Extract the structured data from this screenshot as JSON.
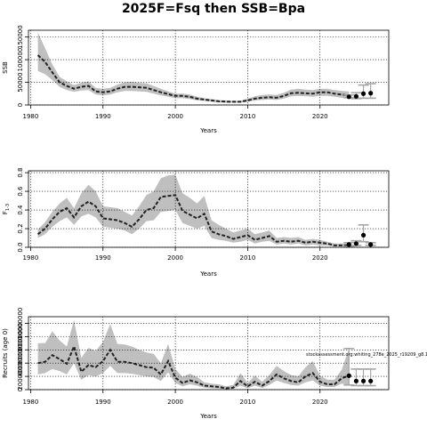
{
  "title": "2025F=Fsq then SSB=Bpa",
  "annotation": "stockassessment.org:whiting_278e_2025_r19209_g8.1c",
  "colors": {
    "band": "#bfbfbf",
    "line": "#222222",
    "grid": "#000000",
    "point": "#000000"
  },
  "chart_data": [
    {
      "type": "line",
      "name": "ssb",
      "title": "",
      "xlabel": "Years",
      "ylabel": "SSB",
      "xlim": [
        1979.7,
        2029.5
      ],
      "ylim": [
        0,
        165000
      ],
      "xticks": [
        1980,
        1990,
        2000,
        2010,
        2020
      ],
      "xtick_labels": [
        "1980",
        "1990",
        "2000",
        "2010",
        "2020"
      ],
      "yticks": [
        0,
        50000,
        100000,
        150000
      ],
      "ytick_labels": [
        "0",
        "50000",
        "100000",
        "150000"
      ],
      "grid": true,
      "x": [
        1981,
        1982,
        1983,
        1984,
        1985,
        1986,
        1987,
        1988,
        1989,
        1990,
        1991,
        1992,
        1993,
        1994,
        1995,
        1996,
        1997,
        1998,
        1999,
        2000,
        2001,
        2002,
        2003,
        2004,
        2005,
        2006,
        2007,
        2008,
        2009,
        2010,
        2011,
        2012,
        2013,
        2014,
        2015,
        2016,
        2017,
        2018,
        2019,
        2020,
        2021,
        2022,
        2023,
        2024
      ],
      "estimate": [
        110000,
        95000,
        72000,
        50000,
        42000,
        36000,
        40000,
        42000,
        30000,
        28000,
        30000,
        36000,
        40000,
        40000,
        39000,
        38000,
        33000,
        28000,
        24000,
        20000,
        20000,
        18000,
        14000,
        12000,
        10000,
        8000,
        7500,
        7000,
        7000,
        10000,
        14000,
        16000,
        17000,
        16000,
        20000,
        26000,
        27000,
        26000,
        25000,
        28000,
        28000,
        25000,
        23000,
        21000
      ],
      "upper": [
        160000,
        125000,
        90000,
        62000,
        52000,
        44000,
        49000,
        52000,
        38000,
        36000,
        38000,
        45000,
        50000,
        51000,
        49000,
        48000,
        42000,
        36000,
        30000,
        25000,
        25000,
        23000,
        18000,
        15000,
        13000,
        11000,
        10000,
        9500,
        9500,
        14000,
        19000,
        22000,
        23000,
        22000,
        27000,
        34000,
        36000,
        34000,
        33000,
        36000,
        36000,
        33000,
        31000,
        30000
      ],
      "lower": [
        75000,
        68000,
        55000,
        40000,
        33000,
        29000,
        32000,
        33000,
        23000,
        21000,
        23000,
        28000,
        31000,
        31000,
        30000,
        29000,
        25000,
        21000,
        18000,
        15000,
        15000,
        13000,
        10000,
        9000,
        7000,
        5500,
        5000,
        5000,
        5000,
        7000,
        10000,
        11000,
        12000,
        11000,
        14000,
        19000,
        20000,
        19000,
        18000,
        20000,
        20000,
        18000,
        16000,
        14000
      ],
      "forecast": {
        "x": [
          2024,
          2025,
          2026,
          2027
        ],
        "median": [
          18000,
          19000,
          25000,
          26000
        ],
        "lower": [
          16000,
          14000,
          15000,
          15000
        ],
        "upper": [
          22000,
          27000,
          44000,
          47000
        ]
      }
    },
    {
      "type": "line",
      "name": "fbar",
      "title": "",
      "xlabel": "Years",
      "ylabel": "F",
      "ylabel_subscript": "1-3",
      "xlim": [
        1979.7,
        2029.5
      ],
      "ylim": [
        0,
        0.82
      ],
      "xticks": [
        1980,
        1990,
        2000,
        2010,
        2020
      ],
      "xtick_labels": [
        "1980",
        "1990",
        "2000",
        "2010",
        "2020"
      ],
      "yticks": [
        0,
        0.2,
        0.4,
        0.6,
        0.8
      ],
      "ytick_labels": [
        "0.0",
        "0.2",
        "0.4",
        "0.6",
        "0.8"
      ],
      "grid": true,
      "x": [
        1981,
        1982,
        1983,
        1984,
        1985,
        1986,
        1987,
        1988,
        1989,
        1990,
        1991,
        1992,
        1993,
        1994,
        1995,
        1996,
        1997,
        1998,
        1999,
        2000,
        2001,
        2002,
        2003,
        2004,
        2005,
        2006,
        2007,
        2008,
        2009,
        2010,
        2011,
        2012,
        2013,
        2014,
        2015,
        2016,
        2017,
        2018,
        2019,
        2020,
        2021,
        2022,
        2023,
        2024
      ],
      "estimate": [
        0.14,
        0.2,
        0.3,
        0.38,
        0.42,
        0.32,
        0.44,
        0.49,
        0.44,
        0.31,
        0.3,
        0.29,
        0.26,
        0.22,
        0.3,
        0.4,
        0.42,
        0.54,
        0.55,
        0.56,
        0.39,
        0.35,
        0.31,
        0.36,
        0.17,
        0.14,
        0.12,
        0.09,
        0.11,
        0.13,
        0.08,
        0.1,
        0.12,
        0.06,
        0.07,
        0.06,
        0.07,
        0.05,
        0.06,
        0.05,
        0.04,
        0.02,
        0.02,
        0.02
      ],
      "upper": [
        0.19,
        0.27,
        0.38,
        0.47,
        0.53,
        0.42,
        0.58,
        0.67,
        0.6,
        0.44,
        0.43,
        0.42,
        0.38,
        0.34,
        0.44,
        0.56,
        0.6,
        0.74,
        0.77,
        0.78,
        0.58,
        0.53,
        0.47,
        0.55,
        0.29,
        0.24,
        0.2,
        0.16,
        0.18,
        0.2,
        0.14,
        0.16,
        0.18,
        0.1,
        0.11,
        0.1,
        0.11,
        0.08,
        0.09,
        0.08,
        0.06,
        0.04,
        0.04,
        0.04
      ],
      "lower": [
        0.1,
        0.14,
        0.22,
        0.28,
        0.32,
        0.24,
        0.33,
        0.36,
        0.32,
        0.22,
        0.21,
        0.2,
        0.18,
        0.14,
        0.2,
        0.28,
        0.29,
        0.38,
        0.39,
        0.4,
        0.26,
        0.23,
        0.2,
        0.23,
        0.1,
        0.08,
        0.07,
        0.05,
        0.06,
        0.08,
        0.04,
        0.06,
        0.07,
        0.03,
        0.04,
        0.03,
        0.04,
        0.02,
        0.03,
        0.02,
        0.02,
        0.01,
        0.01,
        0.01
      ],
      "forecast": {
        "x": [
          2024,
          2025,
          2026,
          2027
        ],
        "median": [
          0.03,
          0.04,
          0.13,
          0.03
        ],
        "lower": [
          0.01,
          0.02,
          0.06,
          0.02
        ],
        "upper": [
          0.05,
          0.07,
          0.24,
          0.05
        ]
      }
    },
    {
      "type": "line",
      "name": "recruitment",
      "title": "",
      "xlabel": "Years",
      "ylabel": "Recruits (age 0)",
      "xlim": [
        1979.7,
        2029.5
      ],
      "ylim": [
        0,
        11000000
      ],
      "xticks": [
        1980,
        1990,
        2000,
        2010,
        2020
      ],
      "xtick_labels": [
        "1980",
        "1990",
        "2000",
        "2010",
        "2020"
      ],
      "yticks": [
        0,
        2000000,
        4000000,
        6000000,
        8000000,
        10000000
      ],
      "ytick_labels": [
        "0",
        "2000000",
        "4000000",
        "6000000",
        "8000000",
        "10000000"
      ],
      "grid": true,
      "x": [
        1981,
        1982,
        1983,
        1984,
        1985,
        1986,
        1987,
        1988,
        1989,
        1990,
        1991,
        1992,
        1993,
        1994,
        1995,
        1996,
        1997,
        1998,
        1999,
        2000,
        2001,
        2002,
        2003,
        2004,
        2005,
        2006,
        2007,
        2008,
        2009,
        2010,
        2011,
        2012,
        2013,
        2014,
        2015,
        2016,
        2017,
        2018,
        2019,
        2020,
        2021,
        2022,
        2023,
        2024
      ],
      "estimate": [
        4000000,
        4200000,
        5200000,
        4600000,
        3900000,
        6500000,
        2700000,
        3700000,
        3400000,
        4300000,
        6000000,
        4200000,
        4200000,
        4000000,
        3700000,
        3400000,
        3300000,
        2300000,
        4300000,
        1800000,
        1000000,
        1400000,
        1100000,
        600000,
        500000,
        400000,
        200000,
        300000,
        1300000,
        500000,
        1200000,
        600000,
        1300000,
        2300000,
        1700000,
        1300000,
        1100000,
        2000000,
        2500000,
        1200000,
        800000,
        800000,
        1700000,
        2100000
      ],
      "upper": [
        7000000,
        7000000,
        8800000,
        7400000,
        6500000,
        10500000,
        4800000,
        6300000,
        5800000,
        7200000,
        9900000,
        6900000,
        6800000,
        6500000,
        6000000,
        5600000,
        5400000,
        4000000,
        6900000,
        3100000,
        1900000,
        2400000,
        1900000,
        1100000,
        900000,
        800000,
        500000,
        700000,
        2500000,
        1000000,
        2100000,
        1200000,
        2200000,
        3600000,
        2800000,
        2200000,
        2000000,
        3400000,
        4300000,
        2100000,
        1500000,
        1500000,
        3000000,
        6200000
      ],
      "lower": [
        2300000,
        2500000,
        3100000,
        2800000,
        2300000,
        4000000,
        1500000,
        2200000,
        2000000,
        2500000,
        3600000,
        2500000,
        2500000,
        2400000,
        2200000,
        2000000,
        1900000,
        1300000,
        2600000,
        1000000,
        500000,
        800000,
        600000,
        300000,
        200000,
        150000,
        80000,
        120000,
        600000,
        200000,
        600000,
        250000,
        700000,
        1400000,
        1000000,
        700000,
        600000,
        1100000,
        1400000,
        600000,
        400000,
        400000,
        900000,
        700000
      ],
      "forecast": {
        "x": [
          2024,
          2025,
          2026,
          2027
        ],
        "median": [
          2100000,
          1300000,
          1300000,
          1300000
        ],
        "lower": [
          700000,
          600000,
          600000,
          600000
        ],
        "upper": [
          6200000,
          3100000,
          3100000,
          3100000
        ]
      }
    }
  ]
}
